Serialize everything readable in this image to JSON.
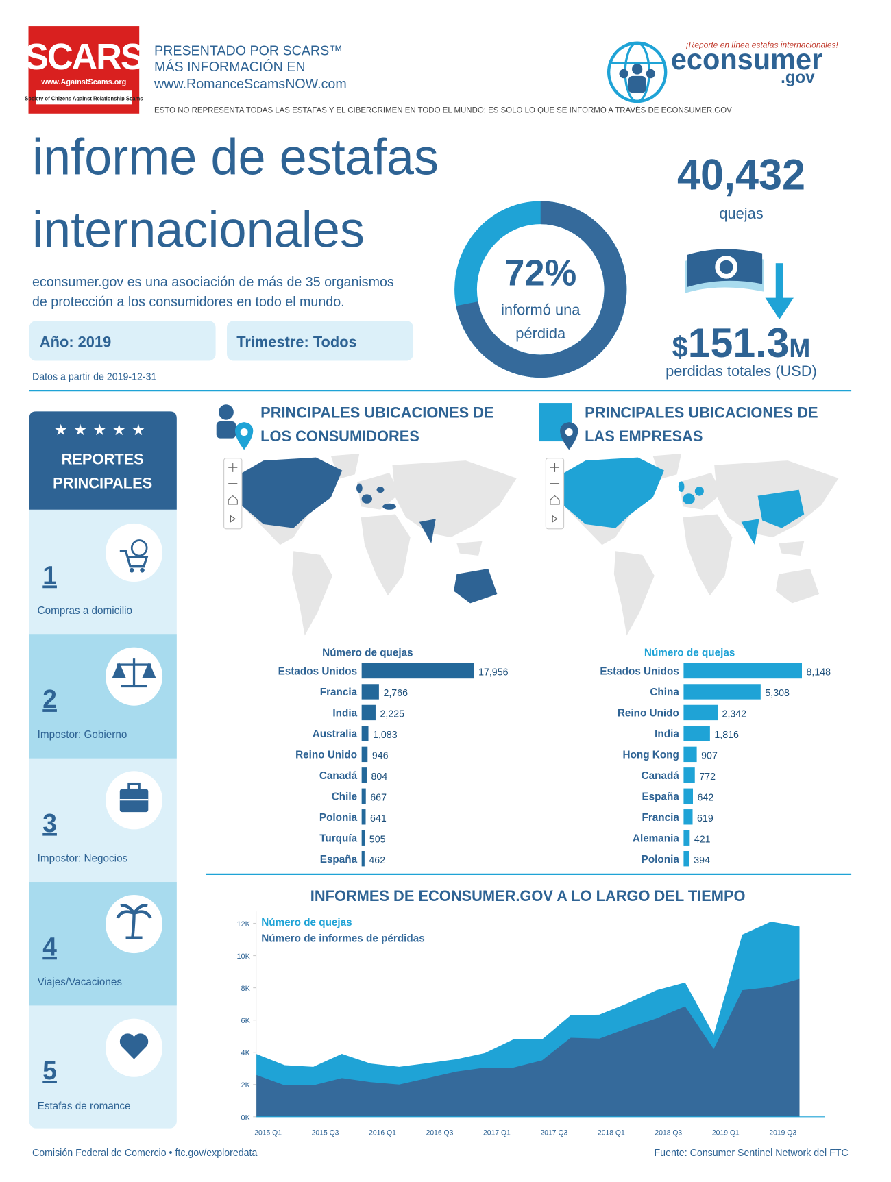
{
  "header": {
    "logo_text": "SCARS",
    "logo_url": "www.AgainstScams.org",
    "logo_tagline": "Society of Citizens Against Relationship Scams",
    "presented_lines": [
      "PRESENTADO POR SCARS™",
      "MÁS INFORMACIÓN EN",
      "www.RomanceScamsNOW.com"
    ],
    "econsumer_tagline": "¡Reporte en línea estafas internacionales!",
    "econsumer_name": "econsumer",
    "econsumer_domain": ".gov",
    "disclaimer": "ESTO NO REPRESENTA TODAS LAS ESTAFAS Y EL CIBERCRIMEN EN TODO EL MUNDO: ES SOLO LO QUE SE INFORMÓ A TRAVÉS DE ECONSUMER.GOV"
  },
  "title_lines": [
    "informe de estafas",
    "internacionales"
  ],
  "description_lines": [
    "econsumer.gov es una asociación de más de 35 organismos",
    "de protección a los consumidores en todo el mundo."
  ],
  "filters": [
    "Año: 2019",
    "Trimestre: Todos"
  ],
  "data_date": "Datos a partir de 2019-12-31",
  "complaints": {
    "value": "40,432",
    "label": "quejas"
  },
  "losses": {
    "prefix": "$",
    "value": "151.3",
    "suffix": "M",
    "label": "perdidas totales (USD)"
  },
  "top_reports": {
    "title_lines": [
      "REPORTES",
      "PRINCIPALES"
    ],
    "items": [
      {
        "rank": "1",
        "label": "Compras a domicilio"
      },
      {
        "rank": "2",
        "label": "Impostor: Gobierno"
      },
      {
        "rank": "3",
        "label": "Impostor: Negocios"
      },
      {
        "rank": "4",
        "label": "Viajes/Vacaciones"
      },
      {
        "rank": "5",
        "label": "Estafas de romance"
      }
    ]
  },
  "map_titles": [
    [
      "PRINCIPALES UBICACIONES DE",
      "LOS CONSUMIDORES"
    ],
    [
      "PRINCIPALES UBICACIONES DE",
      "LAS EMPRESAS"
    ]
  ],
  "timeline_title": "INFORMES DE ECONSUMER.GOV A LO LARGO DEL TIEMPO",
  "footer": {
    "left": "Comisión Federal de Comercio • ftc.gov/exploredata",
    "right": "Fuente: Consumer Sentinel Network del FTC"
  },
  "chart_data": [
    {
      "type": "donut",
      "values": [
        72
      ],
      "value_labels": [
        "72%"
      ],
      "annotations": [
        "informó una",
        "pérdida"
      ],
      "color": "#356a9b",
      "track_color": "#1fa3d6"
    },
    {
      "type": "hbar",
      "x_label": "Número de quejas",
      "color": "#23689a",
      "categories": [
        "Estados Unidos",
        "Francia",
        "India",
        "Australia",
        "Reino Unido",
        "Canadá",
        "Chile",
        "Polonia",
        "Turquía",
        "España"
      ],
      "values": [
        17956,
        2766,
        2225,
        1083,
        946,
        804,
        667,
        641,
        505,
        462
      ],
      "value_labels": [
        "17,956",
        "2,766",
        "2,225",
        "1,083",
        "946",
        "804",
        "667",
        "641",
        "505",
        "462"
      ]
    },
    {
      "type": "hbar",
      "x_label": "Número de quejas",
      "color": "#1fa3d6",
      "categories": [
        "Estados Unidos",
        "China",
        "Reino Unido",
        "India",
        "Hong Kong",
        "Canadá",
        "España",
        "Francia",
        "Alemania",
        "Polonia"
      ],
      "values": [
        8148,
        5308,
        2342,
        1816,
        907,
        772,
        642,
        619,
        421,
        394
      ],
      "value_labels": [
        "8,148",
        "5,308",
        "2,342",
        "1,816",
        "907",
        "772",
        "642",
        "619",
        "421",
        "394"
      ]
    },
    {
      "type": "area",
      "categories": [
        "2015 Q1",
        null,
        "2015 Q3",
        null,
        "2016 Q1",
        null,
        "2016 Q3",
        null,
        "2017 Q1",
        null,
        "2017 Q3",
        null,
        "2018 Q1",
        null,
        "2018 Q3",
        null,
        "2019 Q1",
        null,
        "2019 Q3",
        null
      ],
      "ylim": [
        0,
        12500
      ],
      "yticks": [
        {
          "value": 0,
          "label": "0K"
        },
        {
          "value": 2000,
          "label": "2K"
        },
        {
          "value": 4000,
          "label": "4K"
        },
        {
          "value": 6000,
          "label": "6K"
        },
        {
          "value": 8000,
          "label": "8K"
        },
        {
          "value": 10000,
          "label": "10K"
        },
        {
          "value": 12000,
          "label": "12K"
        }
      ],
      "series": [
        {
          "name": "Número de quejas",
          "color": "#1fa3d6",
          "values": [
            3900,
            3200,
            3100,
            3900,
            3300,
            3100,
            3330,
            3570,
            3950,
            4800,
            4800,
            6300,
            6330,
            7050,
            7850,
            8330,
            5100,
            11300,
            12100,
            11800
          ]
        },
        {
          "name": "Número de informes de pérdidas",
          "color": "#356a9b",
          "values": [
            2600,
            1950,
            1950,
            2400,
            2150,
            2000,
            2400,
            2800,
            3050,
            3050,
            3500,
            4900,
            4850,
            5500,
            6100,
            6850,
            4200,
            7850,
            8050,
            8550
          ]
        }
      ]
    }
  ]
}
